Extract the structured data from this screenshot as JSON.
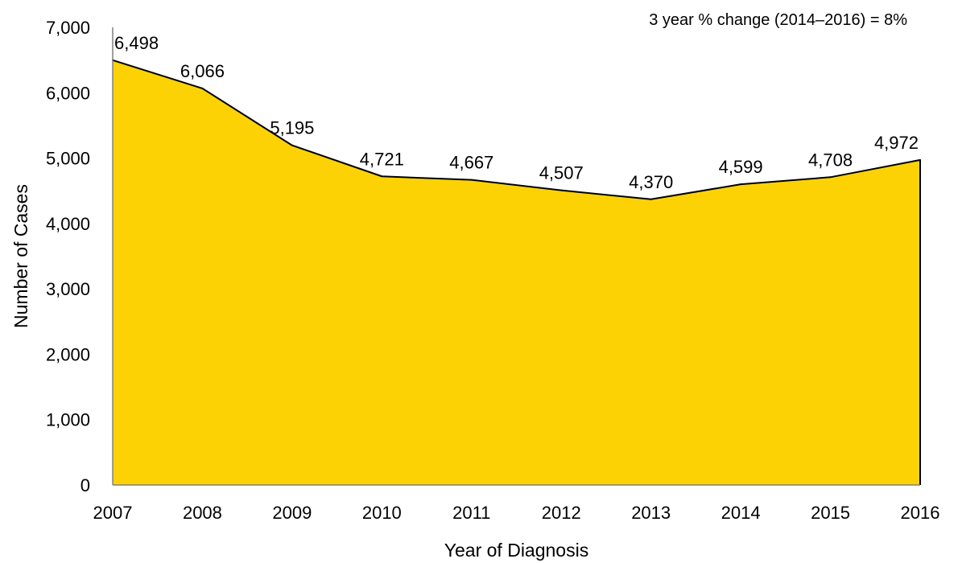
{
  "chart_data": {
    "type": "area",
    "x": [
      "2007",
      "2008",
      "2009",
      "2010",
      "2011",
      "2012",
      "2013",
      "2014",
      "2015",
      "2016"
    ],
    "values": [
      6498,
      6066,
      5195,
      4721,
      4667,
      4507,
      4370,
      4599,
      4708,
      4972
    ],
    "data_labels": [
      "6,498",
      "6,066",
      "5,195",
      "4,721",
      "4,667",
      "4,507",
      "4,370",
      "4,599",
      "4,708",
      "4,972"
    ],
    "xlabel": "Year of Diagnosis",
    "ylabel": "Number of Cases",
    "ylim": [
      0,
      7000
    ],
    "y_ticks": [
      0,
      1000,
      2000,
      3000,
      4000,
      5000,
      6000,
      7000
    ],
    "y_tick_labels": [
      "0",
      "1,000",
      "2,000",
      "3,000",
      "4,000",
      "5,000",
      "6,000",
      "7,000"
    ],
    "annotation": "3 year % change (2014–2016) = 8%",
    "grid": false,
    "legend": "none",
    "colors": {
      "fill": "#FCD205",
      "line": "#000000"
    }
  }
}
